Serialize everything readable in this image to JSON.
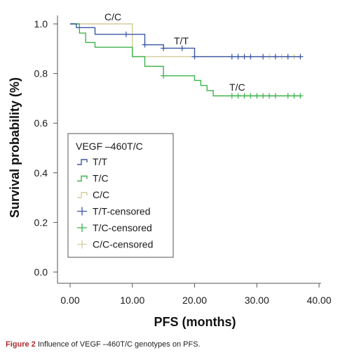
{
  "chart_data": {
    "type": "line",
    "title": "",
    "xlabel": "PFS (months)",
    "ylabel": "Survival probability (%)",
    "xlim": [
      0,
      40
    ],
    "ylim": [
      0,
      1.0
    ],
    "x_ticks": [
      "0.00",
      "10.00",
      "20.00",
      "30.00",
      "40.00"
    ],
    "y_ticks": [
      "0.0",
      "0.2",
      "0.4",
      "0.6",
      "0.8",
      "1.0"
    ],
    "grid": false,
    "legend_title": "VEGF –460T/C",
    "legend_position": "center-left",
    "legend_entries": [
      "T/T",
      "T/C",
      "C/C",
      "T/T-censored",
      "T/C-censored",
      "C/C-censored"
    ],
    "annotations": [
      "C/C",
      "T/T",
      "T/C"
    ],
    "series": [
      {
        "name": "T/T",
        "color": "#3b57a6",
        "steps": [
          [
            0,
            1.0
          ],
          [
            1,
            0.985
          ],
          [
            4,
            0.958
          ],
          [
            12,
            0.916
          ],
          [
            15,
            0.902
          ],
          [
            20,
            0.868
          ],
          [
            37,
            0.868
          ]
        ],
        "censored": [
          [
            9,
            0.958
          ],
          [
            12,
            0.916
          ],
          [
            15,
            0.902
          ],
          [
            18,
            0.902
          ],
          [
            20,
            0.868
          ],
          [
            26,
            0.868
          ],
          [
            27,
            0.868
          ],
          [
            28,
            0.868
          ],
          [
            29,
            0.868
          ],
          [
            31,
            0.868
          ],
          [
            33,
            0.868
          ],
          [
            35,
            0.868
          ],
          [
            37,
            0.868
          ]
        ]
      },
      {
        "name": "T/C",
        "color": "#3db34a",
        "steps": [
          [
            0,
            1.0
          ],
          [
            1.5,
            0.963
          ],
          [
            2.5,
            0.925
          ],
          [
            4,
            0.906
          ],
          [
            10,
            0.868
          ],
          [
            12,
            0.829
          ],
          [
            15,
            0.791
          ],
          [
            20,
            0.772
          ],
          [
            21,
            0.752
          ],
          [
            22,
            0.731
          ],
          [
            23,
            0.71
          ],
          [
            37,
            0.71
          ]
        ],
        "censored": [
          [
            15,
            0.791
          ],
          [
            26,
            0.71
          ],
          [
            27,
            0.71
          ],
          [
            28,
            0.71
          ],
          [
            29,
            0.71
          ],
          [
            30,
            0.71
          ],
          [
            31,
            0.71
          ],
          [
            32,
            0.71
          ],
          [
            33,
            0.71
          ],
          [
            35,
            0.71
          ],
          [
            36,
            0.71
          ],
          [
            37,
            0.71
          ]
        ]
      },
      {
        "name": "C/C",
        "color": "#d6cc9a",
        "steps": [
          [
            0,
            1.0
          ],
          [
            10,
            0.868
          ],
          [
            37,
            0.868
          ]
        ],
        "censored": [
          [
            32,
            0.868
          ],
          [
            34,
            0.868
          ],
          [
            36,
            0.868
          ]
        ]
      }
    ]
  },
  "caption": {
    "figure_label": "Figure 2",
    "text": " Influence of VEGF –460T/C genotypes on PFS."
  }
}
